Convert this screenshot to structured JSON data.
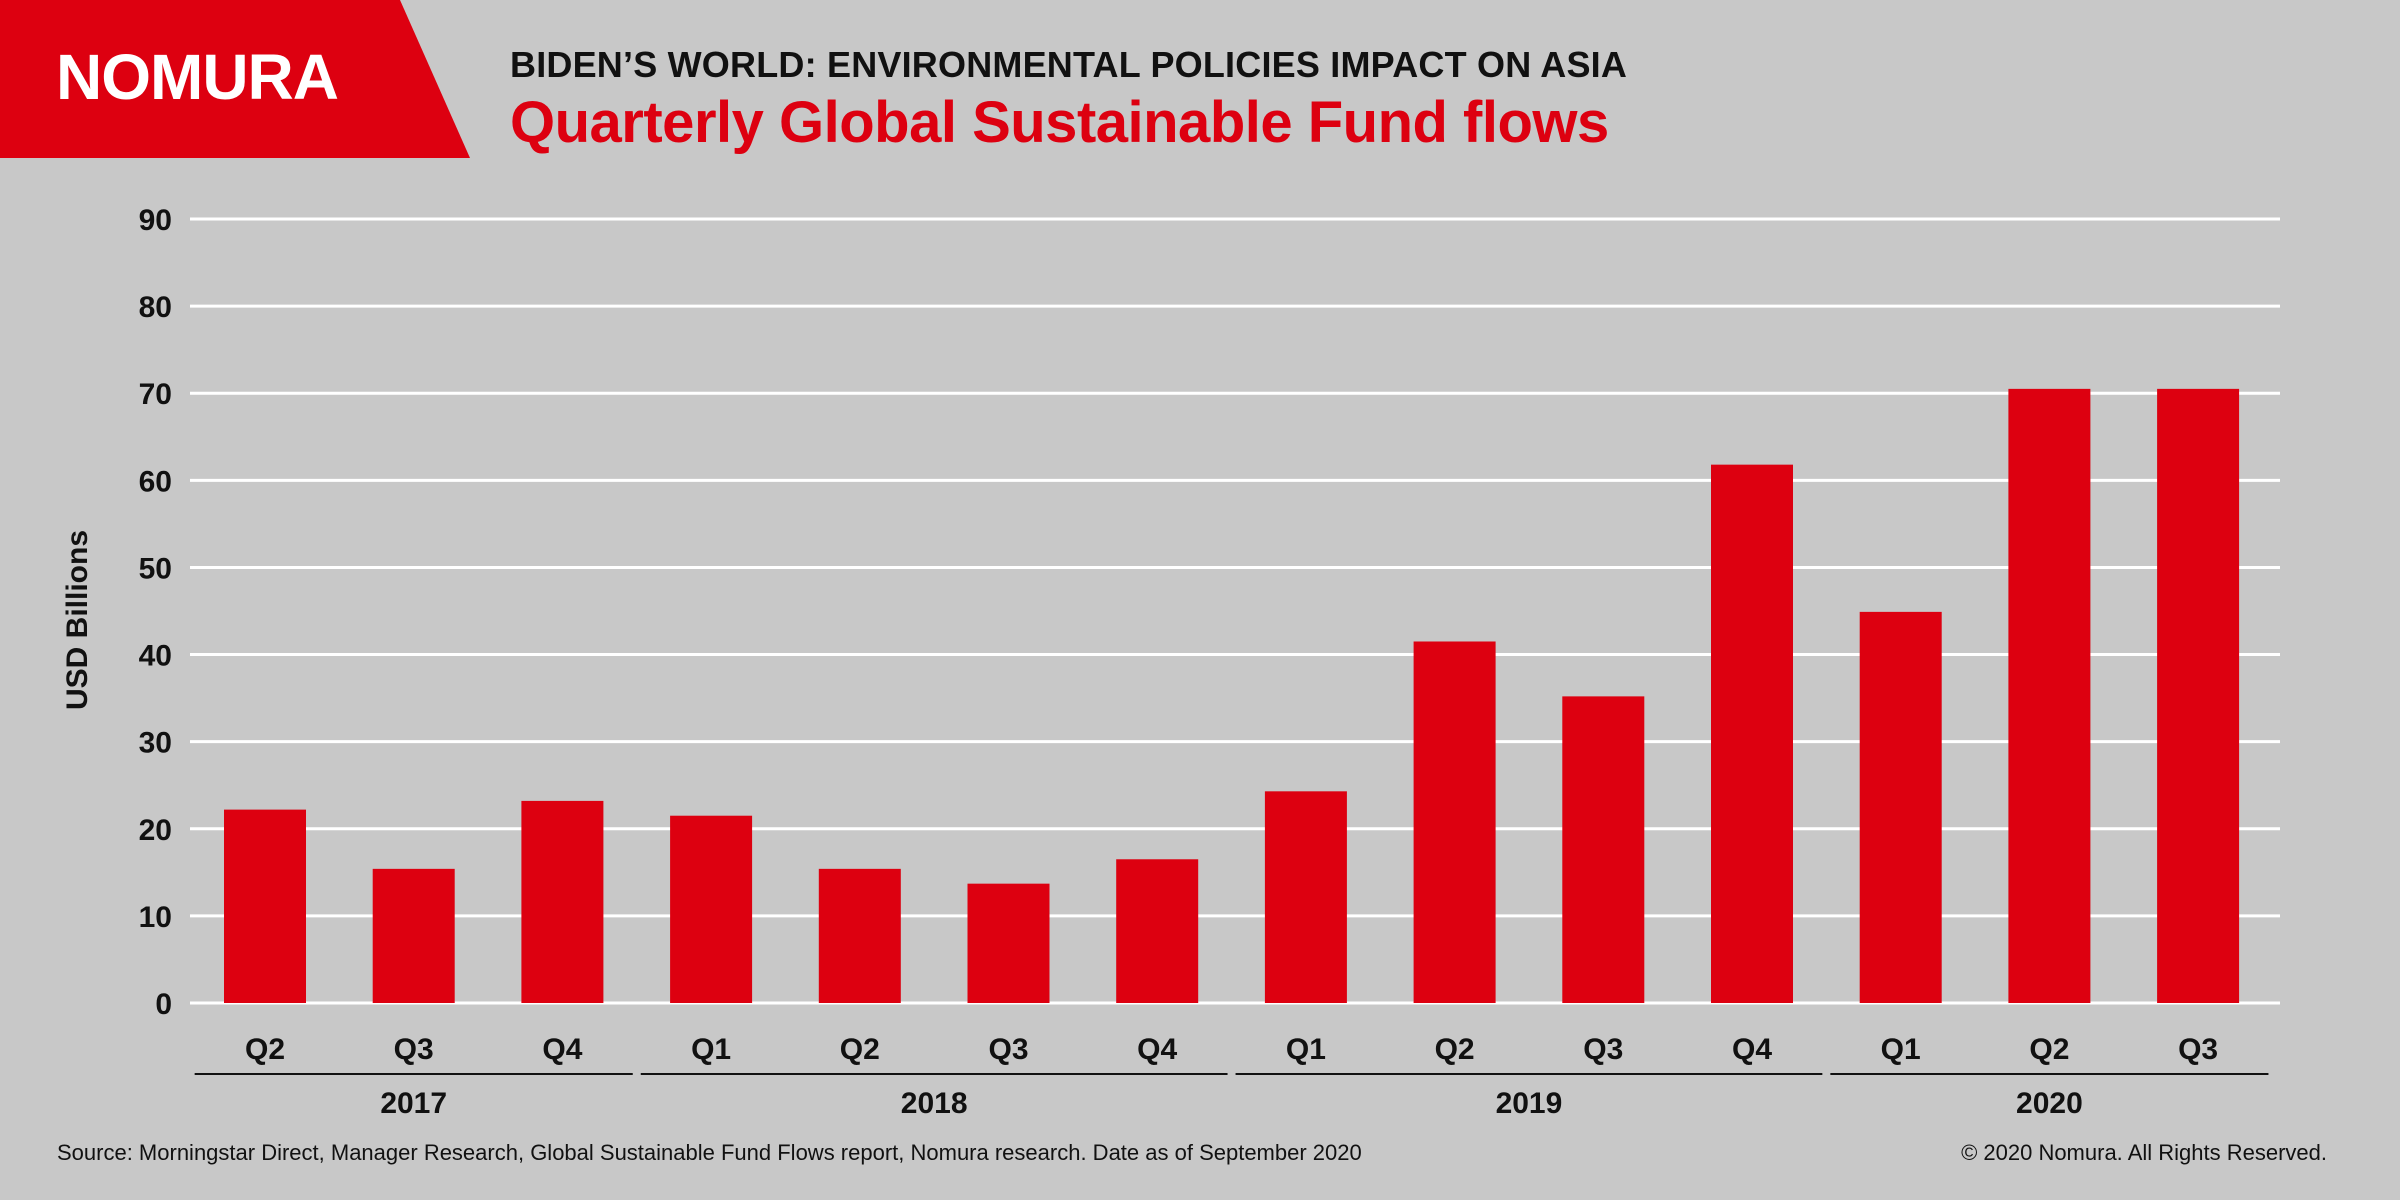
{
  "brand": {
    "logo_text": "NOMURA",
    "color": "#dd0010"
  },
  "header": {
    "kicker": "BIDEN’S WORLD: ENVIRONMENTAL POLICIES IMPACT ON ASIA",
    "title": "Quarterly Global Sustainable Fund flows"
  },
  "chart_data": {
    "type": "bar",
    "title": "Quarterly Global Sustainable Fund flows",
    "ylabel": "USD Billions",
    "xlabel": "",
    "ylim": [
      0,
      90
    ],
    "yticks": [
      0,
      10,
      20,
      30,
      40,
      50,
      60,
      70,
      80,
      90
    ],
    "grid": true,
    "bar_color": "#dd0010",
    "categories": [
      "Q2",
      "Q3",
      "Q4",
      "Q1",
      "Q2",
      "Q3",
      "Q4",
      "Q1",
      "Q2",
      "Q3",
      "Q4",
      "Q1",
      "Q2",
      "Q3"
    ],
    "values": [
      22.2,
      15.4,
      23.2,
      21.5,
      15.4,
      13.7,
      16.5,
      24.3,
      41.5,
      35.2,
      61.8,
      44.9,
      70.5,
      70.5
    ],
    "year_groups": [
      {
        "label": "2017",
        "count": 3
      },
      {
        "label": "2018",
        "count": 4
      },
      {
        "label": "2019",
        "count": 4
      },
      {
        "label": "2020",
        "count": 3
      }
    ]
  },
  "footer": {
    "source": "Source: Morningstar Direct, Manager Research, Global Sustainable Fund Flows report, Nomura research. Date as of September 2020",
    "copyright": "© 2020 Nomura. All Rights Reserved."
  }
}
